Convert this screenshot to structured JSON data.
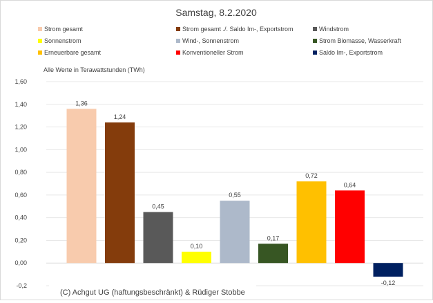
{
  "chart_data": {
    "type": "bar",
    "title": "Samstag, 8.2.2020",
    "subtitle": "Alle Werte in Terawattstunden (TWh)",
    "xlabel": "",
    "ylabel": "",
    "ylim": [
      -0.2,
      1.6
    ],
    "ytick_values": [
      -0.2,
      0.0,
      0.2,
      0.4,
      0.6,
      0.8,
      1.0,
      1.2,
      1.4,
      1.6
    ],
    "ytick_labels": [
      "-0,2",
      "0,00",
      "0,20",
      "0,40",
      "0,60",
      "0,80",
      "1,00",
      "1,20",
      "1,40",
      "1,60"
    ],
    "grid": true,
    "legend_position": "top",
    "series": [
      {
        "name": "Strom gesamt",
        "value": 1.36,
        "label": "1,36",
        "color": "#f8cbad"
      },
      {
        "name": "Strom gesamt ./. Saldo Im-, Exportstrom",
        "value": 1.24,
        "label": "1,24",
        "color": "#843c0c"
      },
      {
        "name": "Windstrom",
        "value": 0.45,
        "label": "0,45",
        "color": "#595959"
      },
      {
        "name": "Sonnenstrom",
        "value": 0.1,
        "label": "0,10",
        "color": "#ffff00"
      },
      {
        "name": "Wind-, Sonnenstrom",
        "value": 0.55,
        "label": "0,55",
        "color": "#adb9ca"
      },
      {
        "name": "Strom Biomasse, Wasserkraft",
        "value": 0.17,
        "label": "0,17",
        "color": "#375623"
      },
      {
        "name": "Erneuerbare gesamt",
        "value": 0.72,
        "label": "0,72",
        "color": "#ffc000"
      },
      {
        "name": "Konventioneller Strom",
        "value": 0.64,
        "label": "0,64",
        "color": "#ff0000"
      },
      {
        "name": "Saldo Im-, Exportstrom",
        "value": -0.12,
        "label": "-0,12",
        "color": "#002060"
      }
    ],
    "annotation": "(C) Achgut UG (haftungsbeschränkt) & Rüdiger Stobbe"
  }
}
